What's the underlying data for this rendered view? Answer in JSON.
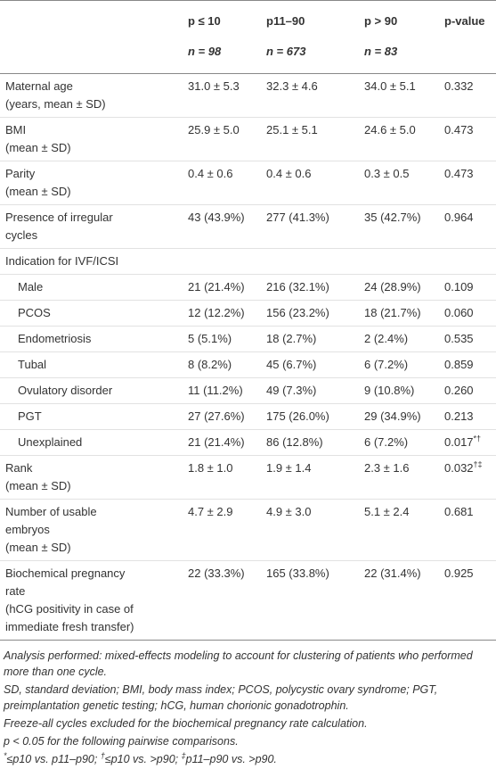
{
  "table": {
    "header": [
      "",
      "p ≤ 10",
      "p11–90",
      "p > 90",
      "p-value"
    ],
    "counts": [
      "",
      "n = 98",
      "n = 673",
      "n = 83",
      ""
    ],
    "rows": [
      {
        "label": "Maternal age\n(years, mean ± SD)",
        "cells": [
          "31.0 ± 5.3",
          "32.3 ± 4.6",
          "34.0 ± 5.1",
          "0.332"
        ]
      },
      {
        "label": "BMI\n(mean ± SD)",
        "cells": [
          "25.9 ± 5.0",
          "25.1 ± 5.1",
          "24.6 ± 5.0",
          "0.473"
        ]
      },
      {
        "label": "Parity\n(mean ± SD)",
        "cells": [
          "0.4 ± 0.6",
          "0.4 ± 0.6",
          "0.3 ± 0.5",
          "0.473"
        ]
      },
      {
        "label": "Presence of irregular\ncycles",
        "cells": [
          "43 (43.9%)",
          "277 (41.3%)",
          "35 (42.7%)",
          "0.964"
        ]
      },
      {
        "label": "Indication for IVF/ICSI",
        "cells": [
          "",
          "",
          "",
          ""
        ]
      },
      {
        "label": "Male",
        "indent": true,
        "cells": [
          "21 (21.4%)",
          "216 (32.1%)",
          "24 (28.9%)",
          "0.109"
        ]
      },
      {
        "label": "PCOS",
        "indent": true,
        "cells": [
          "12 (12.2%)",
          "156 (23.2%)",
          "18 (21.7%)",
          "0.060"
        ]
      },
      {
        "label": "Endometriosis",
        "indent": true,
        "cells": [
          "5 (5.1%)",
          "18 (2.7%)",
          "2 (2.4%)",
          "0.535"
        ]
      },
      {
        "label": "Tubal",
        "indent": true,
        "cells": [
          "8 (8.2%)",
          "45 (6.7%)",
          "6 (7.2%)",
          "0.859"
        ]
      },
      {
        "label": "Ovulatory disorder",
        "indent": true,
        "cells": [
          "11 (11.2%)",
          "49 (7.3%)",
          "9 (10.8%)",
          "0.260"
        ]
      },
      {
        "label": "PGT",
        "indent": true,
        "cells": [
          "27 (27.6%)",
          "175 (26.0%)",
          "29 (34.9%)",
          "0.213"
        ]
      },
      {
        "label": "Unexplained",
        "indent": true,
        "cells": [
          "21 (21.4%)",
          "86 (12.8%)",
          "6 (7.2%)",
          {
            "value": "0.017",
            "sup": "*†"
          }
        ]
      },
      {
        "label": "Rank\n(mean ± SD)",
        "cells": [
          "1.8 ± 1.0",
          "1.9 ± 1.4",
          "2.3 ± 1.6",
          {
            "value": "0.032",
            "sup": "†‡"
          }
        ]
      },
      {
        "label": "Number of usable\nembryos\n(mean ± SD)",
        "cells": [
          "4.7 ± 2.9",
          "4.9 ± 3.0",
          "5.1 ± 2.4",
          "0.681"
        ]
      },
      {
        "label": "Biochemical pregnancy\nrate\n(hCG positivity in case of\nimmediate fresh transfer)",
        "cells": [
          "22 (33.3%)",
          "165 (33.8%)",
          "22 (31.4%)",
          "0.925"
        ]
      }
    ]
  },
  "footnotes": [
    "Analysis performed: mixed-effects modeling to account for clustering of patients who performed more than one cycle.",
    "SD, standard deviation; BMI, body mass index; PCOS, polycystic ovary syndrome; PGT, preimplantation genetic testing; hCG, human chorionic gonadotrophin.",
    "Freeze-all cycles excluded for the biochemical pregnancy rate calculation.",
    "p < 0.05 for the following pairwise comparisons.",
    [
      {
        "sup": "*"
      },
      {
        "text": "≤p10 vs. p11–p90; "
      },
      {
        "sup": "†"
      },
      {
        "text": "≤p10 vs. >p90; "
      },
      {
        "sup": "‡"
      },
      {
        "text": "p11–p90 vs. >p90."
      }
    ]
  ]
}
